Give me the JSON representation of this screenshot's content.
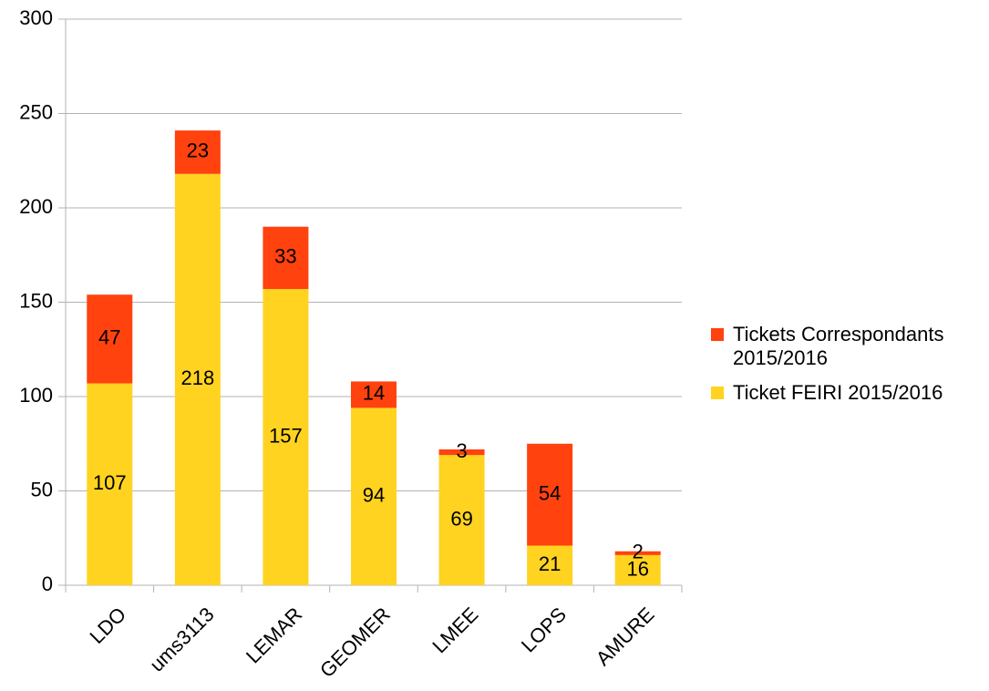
{
  "chart_data": {
    "type": "bar",
    "stacked": true,
    "categories": [
      "LDO",
      "ums3113",
      "LEMAR",
      "GEOMER",
      "LMEE",
      "LOPS",
      "AMURE"
    ],
    "series": [
      {
        "name": "Ticket FEIRI 2015/2016",
        "values": [
          107,
          218,
          157,
          94,
          69,
          21,
          16
        ],
        "color": "#FFD320"
      },
      {
        "name": "Tickets Correspondants 2015/2016",
        "values": [
          47,
          23,
          33,
          14,
          3,
          54,
          2
        ],
        "color": "#FF420E"
      }
    ],
    "ylim": [
      0,
      300
    ],
    "yticks": [
      0,
      50,
      100,
      150,
      200,
      250,
      300
    ],
    "grid": true,
    "legend_position": "right",
    "legend": [
      {
        "label": "Tickets Correspondants 2015/2016",
        "color": "#FF420E"
      },
      {
        "label": "Ticket FEIRI 2015/2016",
        "color": "#FFD320"
      }
    ],
    "title": "",
    "xlabel": "",
    "ylabel": ""
  }
}
